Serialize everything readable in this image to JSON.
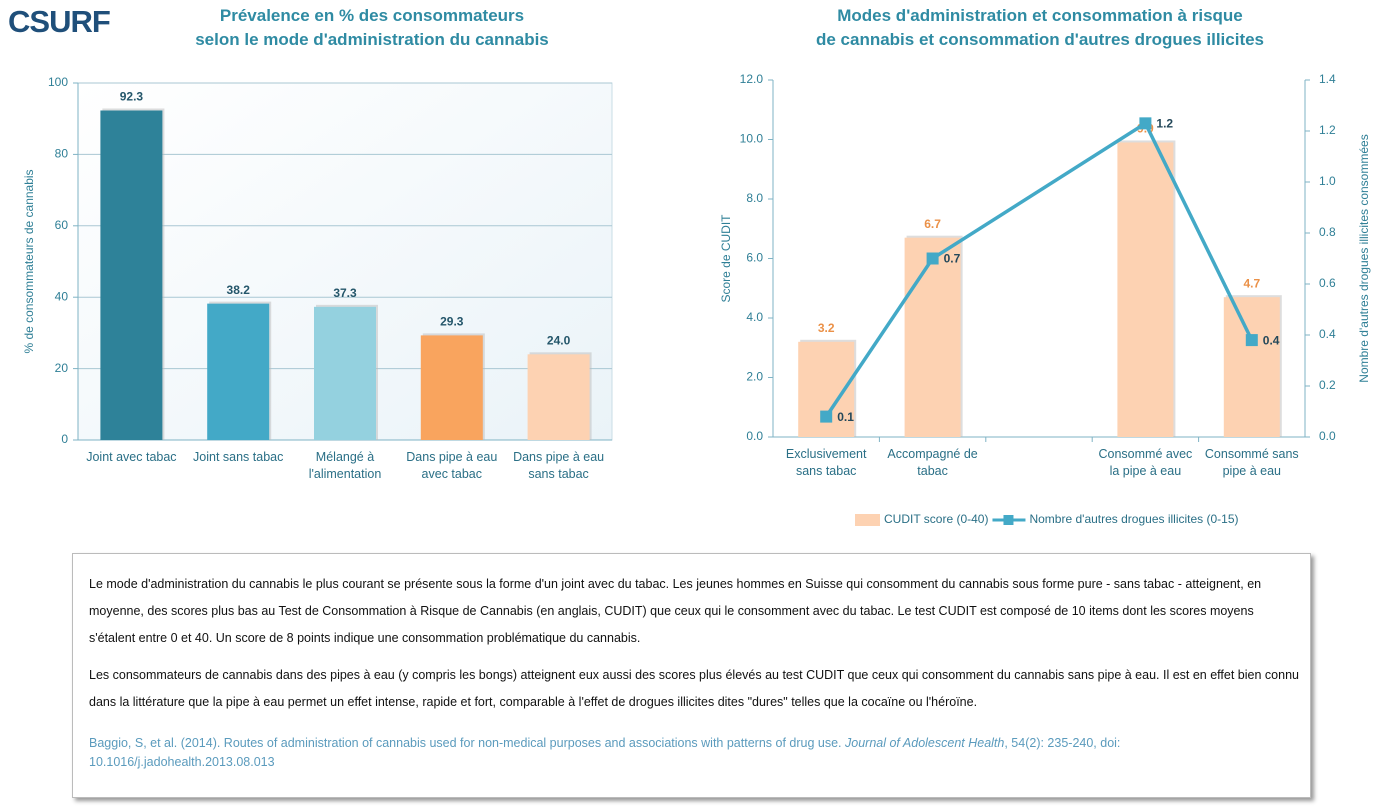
{
  "logo": "CSURF",
  "chart_data": [
    {
      "type": "bar",
      "title": [
        "Prévalence en % des consommateurs",
        "selon le mode d'administration du cannabis"
      ],
      "ylabel": "% de consommateurs de cannabis",
      "categories": [
        "Joint avec tabac",
        "Joint sans tabac",
        "Mélangé à l'alimentation",
        "Dans pipe à eau avec tabac",
        "Dans pipe à eau sans tabac"
      ],
      "values": [
        92.3,
        38.2,
        37.3,
        29.3,
        24.0
      ],
      "value_labels": [
        "92.3",
        "38.2",
        "37.3",
        "29.3",
        "24.0"
      ],
      "colors": [
        "#2e8299",
        "#43a9c7",
        "#94d1df",
        "#f9a45e",
        "#fdd2b2"
      ],
      "ylim": [
        0,
        100
      ],
      "yticks": [
        0,
        20,
        40,
        60,
        80,
        100
      ],
      "grid": true
    },
    {
      "type": "combo",
      "title": [
        "Modes d'administration et consommation à risque",
        "de cannabis et consommation d'autres drogues illicites"
      ],
      "ylabel": "Score de CUDIT",
      "y2label": "Nombre d'autres drogues illicites consommées",
      "categories": [
        "Exclusivement sans tabac",
        "Accompagné de tabac",
        null,
        "Consommé avec la pipe à eau",
        "Consommé sans pipe à eau"
      ],
      "series": [
        {
          "name": "CUDIT score (0-40)",
          "type": "bar",
          "color": "#fdd2b2",
          "label_color": "#eb9148",
          "values": [
            3.2,
            6.7,
            null,
            9.9,
            4.7
          ]
        },
        {
          "name": "Nombre d'autres drogues illicites (0-15)",
          "type": "line",
          "axis": "y2",
          "color": "#43a9c7",
          "label_color": "#24485a",
          "values": [
            0.08,
            0.7,
            null,
            1.23,
            0.38
          ],
          "value_labels": [
            "0.1",
            "0.7",
            null,
            "1.2",
            "0.4"
          ]
        }
      ],
      "ylim": [
        0,
        12
      ],
      "yticks": [
        {
          "value": 0,
          "label": "0.0"
        },
        {
          "value": 2,
          "label": "2.0"
        },
        {
          "value": 4,
          "label": "4.0"
        },
        {
          "value": 6,
          "label": "6.0"
        },
        {
          "value": 8,
          "label": "8.0"
        },
        {
          "value": 10,
          "label": "10.0"
        },
        {
          "value": 12,
          "label": "12.0"
        }
      ],
      "y2lim": [
        0,
        1.4
      ],
      "y2ticks": [
        {
          "value": 0,
          "label": "0.0"
        },
        {
          "value": 0.2,
          "label": "0.2"
        },
        {
          "value": 0.4,
          "label": "0.4"
        },
        {
          "value": 0.6,
          "label": "0.6"
        },
        {
          "value": 0.8,
          "label": "0.8"
        },
        {
          "value": 1,
          "label": "1.0"
        },
        {
          "value": 1.2,
          "label": "1.2"
        },
        {
          "value": 1.4,
          "label": "1.4"
        }
      ],
      "legend": "bottom"
    }
  ],
  "text": {
    "paragraphs": [
      " Le mode d'administration du cannabis le plus courant se présente sous la forme d'un joint avec du tabac. Les jeunes hommes en Suisse qui consomment du cannabis sous forme pure  - sans tabac - atteignent, en moyenne, des scores plus bas au Test de Consommation à Risque de Cannabis (en anglais, CUDIT) que ceux qui le consomment avec du tabac. Le test CUDIT est composé de 10 items dont les scores moyens s'étalent entre 0 et 40.  Un score de 8 points indique une consommation problématique du cannabis.",
      "Les consommateurs de cannabis dans des pipes à eau (y compris les bongs) atteignent eux aussi des scores plus élevés au test CUDIT que ceux qui consomment du cannabis sans pipe à eau. Il est en effet bien connu dans la littérature que la pipe à eau permet un effet intense, rapide et fort, comparable à l'effet de drogues illicites dites \"dures\" telles que la cocaïne ou l'héroïne."
    ],
    "citation": {
      "authors": "Baggio, S, et al. (2014).  Routes of administration of cannabis used for non-medical purposes and associations with patterns of drug use. ",
      "journal": "Journal of Adolescent Health",
      "details": ", 54(2): 235-240,  doi: 10.1016/j.jadohealth.2013.08.013"
    }
  }
}
